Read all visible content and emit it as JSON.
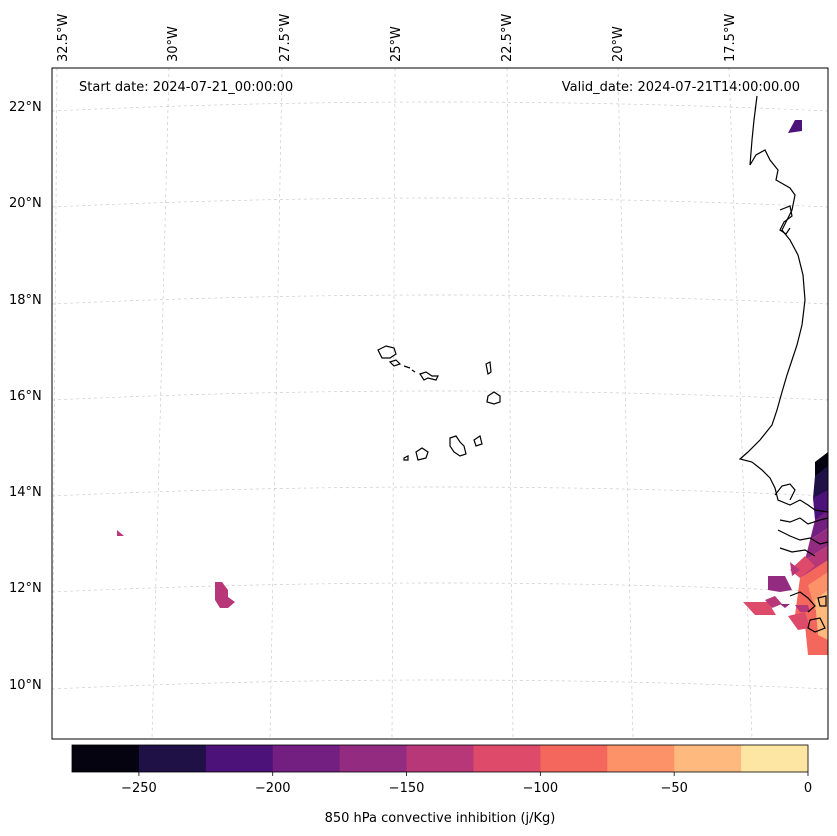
{
  "header": {
    "start_date": "Start date: 2024-07-21_00:00:00",
    "valid_date": "Valid_date: 2024-07-21T14:00:00.00"
  },
  "lon_labels": [
    "32.5°W",
    "30°W",
    "27.5°W",
    "25°W",
    "22.5°W",
    "20°W",
    "17.5°W"
  ],
  "lat_labels": [
    "22°N",
    "20°N",
    "18°N",
    "16°N",
    "14°N",
    "12°N",
    "10°N"
  ],
  "colorbar": {
    "label": "850 hPa convective inhibition (j/Kg)",
    "tick_labels": [
      "−250",
      "−200",
      "−150",
      "−100",
      "−50",
      "0"
    ],
    "colors": [
      "#05030f",
      "#1f1146",
      "#4d117a",
      "#721f81",
      "#932b80",
      "#b73779",
      "#dd4a6a",
      "#f4675c",
      "#fd9168",
      "#feb97f",
      "#fde5a3"
    ],
    "range": [
      -275,
      0
    ],
    "step": 25
  },
  "map": {
    "grid": true,
    "region": "Cape Verde Islands and West African coast"
  }
}
